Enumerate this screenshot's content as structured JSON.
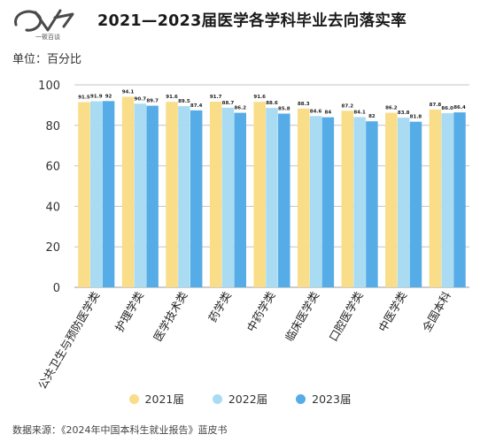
{
  "logo": {
    "text": "一筱百谈"
  },
  "title": "2021—2023届医学各学科毕业去向落实率",
  "unit": "单位：百分比",
  "legend": {
    "s2021": "2021届",
    "s2022": "2022届",
    "s2023": "2023届"
  },
  "source": "数据来源：《2024年中国本科生就业报告》蓝皮书",
  "colors": {
    "s2021": "#f9dd88",
    "s2022": "#a9dcf2",
    "s2023": "#56ace6"
  },
  "chart_data": {
    "type": "bar",
    "categories": [
      "公共卫生与预防医学类",
      "护理学类",
      "医学技术类",
      "药学类",
      "中药学类",
      "临床医学类",
      "口腔医学类",
      "中医学类",
      "全国本科"
    ],
    "series": [
      {
        "name": "2021届",
        "values": [
          91.5,
          94.1,
          91.6,
          91.7,
          91.6,
          88.3,
          87.2,
          86.2,
          87.8
        ]
      },
      {
        "name": "2022届",
        "values": [
          91.9,
          90.7,
          89.5,
          88.7,
          88.6,
          84.6,
          84.1,
          83.8,
          86.0
        ]
      },
      {
        "name": "2023届",
        "values": [
          92,
          89.7,
          87.4,
          86.2,
          85.8,
          84,
          82,
          81.8,
          86.4
        ]
      }
    ],
    "value_labels": [
      [
        "91.5",
        "94.1",
        "91.6",
        "91.7",
        "91.6",
        "88.3",
        "87.2",
        "86.2",
        "87.8"
      ],
      [
        "91.9",
        "90.7",
        "89.5",
        "88.7",
        "88.6",
        "84.6",
        "84.1",
        "83.8",
        "86.0"
      ],
      [
        "92",
        "89.7",
        "87.4",
        "86.2",
        "85.8",
        "84",
        "82",
        "81.8",
        "86.4"
      ]
    ],
    "ylim": [
      0,
      100
    ],
    "yticks": [
      0,
      20,
      40,
      60,
      80,
      100
    ],
    "grid": true,
    "legend_position": "bottom"
  }
}
